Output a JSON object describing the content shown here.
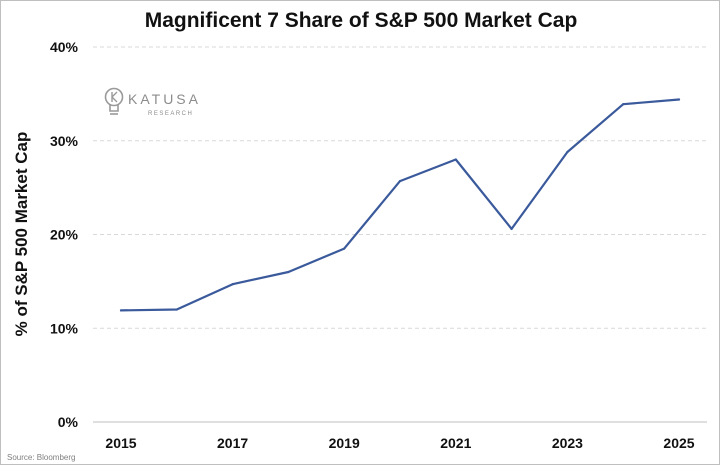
{
  "chart_data": {
    "type": "line",
    "title": "Magnificent 7 Share of S&P 500 Market Cap",
    "xlabel": "",
    "ylabel": "% of S&P 500 Market Cap",
    "x": [
      2015,
      2016,
      2017,
      2018,
      2019,
      2020,
      2021,
      2022,
      2023,
      2024,
      2025
    ],
    "series": [
      {
        "values": [
          11.9,
          12.0,
          14.7,
          16.0,
          18.5,
          25.7,
          28.0,
          20.6,
          28.8,
          33.9,
          34.4
        ]
      }
    ],
    "xticks": [
      "2015",
      "2017",
      "2019",
      "2021",
      "2023",
      "2025"
    ],
    "yticks": [
      "0%",
      "10%",
      "20%",
      "30%",
      "40%"
    ],
    "ylim": [
      0,
      40
    ],
    "grid": true,
    "line_color": "#3a5a9c"
  },
  "logo": {
    "name": "KATUSA",
    "sub": "RESEARCH",
    "icon": "lightbulb-icon"
  },
  "source": "Source: Bloomberg"
}
